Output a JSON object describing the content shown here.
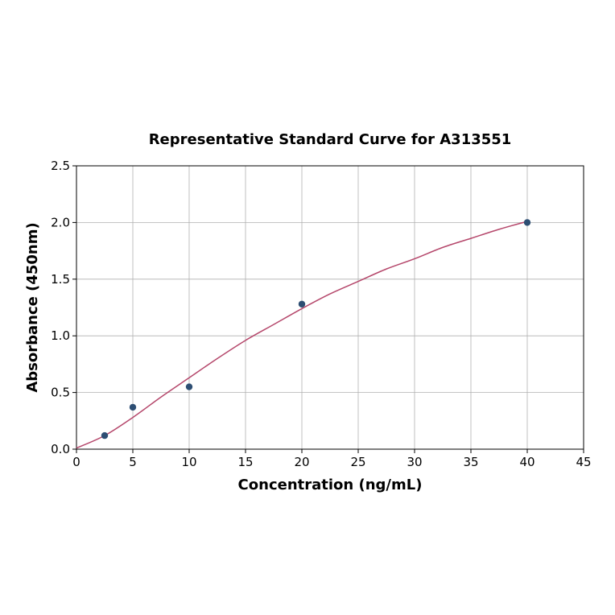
{
  "chart_data": {
    "type": "scatter",
    "title": "Representative Standard Curve for A313551",
    "xlabel": "Concentration (ng/mL)",
    "ylabel": "Absorbance (450nm)",
    "xlim": [
      0,
      45
    ],
    "ylim": [
      0,
      2.5
    ],
    "xticks": [
      0,
      5,
      10,
      15,
      20,
      25,
      30,
      35,
      40,
      45
    ],
    "yticks": [
      0.0,
      0.5,
      1.0,
      1.5,
      2.0,
      2.5
    ],
    "grid": true,
    "points": {
      "x": [
        2.5,
        5,
        10,
        20,
        40
      ],
      "y": [
        0.12,
        0.37,
        0.55,
        1.28,
        2.0
      ],
      "color": "#2d4e73"
    },
    "fit_curve": {
      "x": [
        0,
        2.5,
        5,
        7.5,
        10,
        12.5,
        15,
        17.5,
        20,
        22.5,
        25,
        27.5,
        30,
        32.5,
        35,
        37.5,
        40
      ],
      "y": [
        0.01,
        0.12,
        0.28,
        0.46,
        0.63,
        0.8,
        0.96,
        1.1,
        1.24,
        1.37,
        1.48,
        1.59,
        1.68,
        1.78,
        1.86,
        1.94,
        2.01
      ],
      "color": "#b5476b"
    }
  }
}
